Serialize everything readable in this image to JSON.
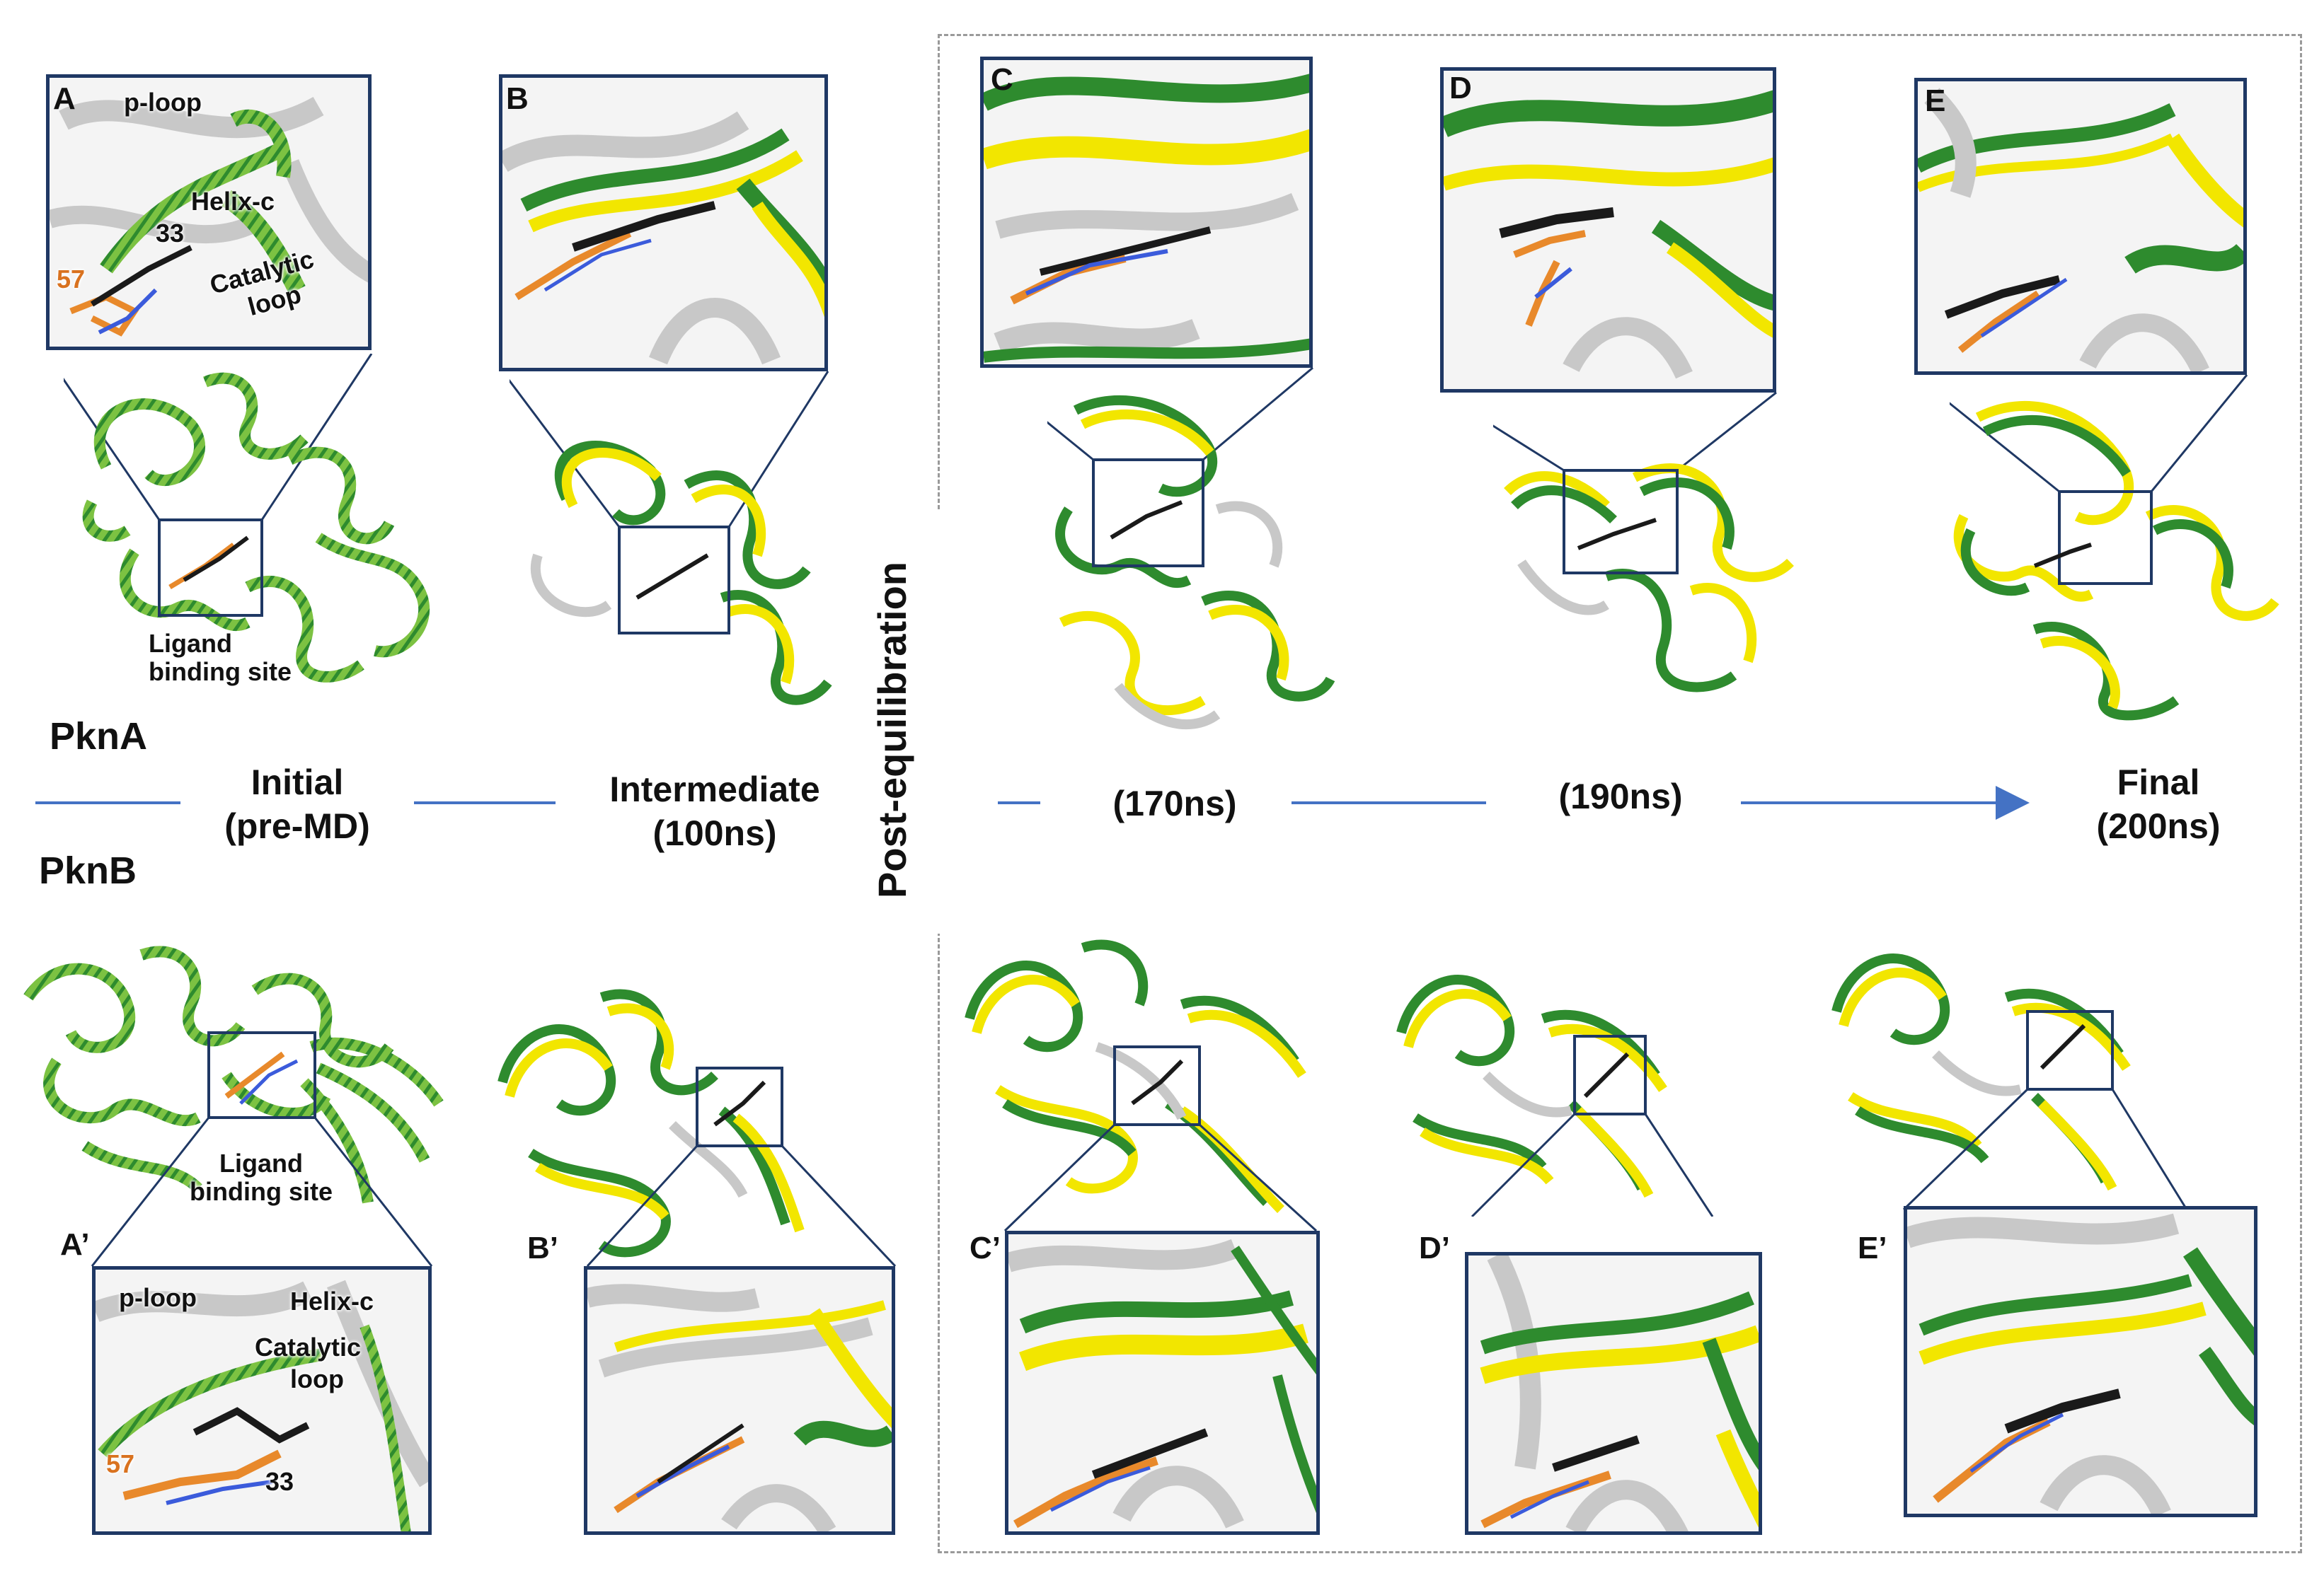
{
  "rows": {
    "top": "PknA",
    "bottom": "PknB"
  },
  "timeline": {
    "stage_initial": [
      "Initial",
      "(pre-MD)"
    ],
    "stage_intermediate": [
      "Intermediate",
      "(100ns)"
    ],
    "stage_170": "(170ns)",
    "stage_190": "(190ns)",
    "stage_final": [
      "Final",
      "(200ns)"
    ],
    "post_equilibration": "Post-equilibration",
    "arrow_color": "#4472c4"
  },
  "panels_top": [
    "A",
    "B",
    "C",
    "D",
    "E"
  ],
  "panels_bottom": [
    "A’",
    "B’",
    "C’",
    "D’",
    "E’"
  ],
  "annotations_A": {
    "p_loop": "p-loop",
    "helix_c": "Helix-c",
    "residue_33": "33",
    "residue_57": "57",
    "catalytic": "Catalytic",
    "loop": "loop",
    "ligand_site_1": "Ligand",
    "ligand_site_2": "binding site"
  },
  "annotations_A_prime": {
    "p_loop": "p-loop",
    "helix_c": "Helix-c",
    "catalytic": "Catalytic",
    "loop": "loop",
    "residue_57": "57",
    "residue_33": "33",
    "ligand_site_1": "Ligand",
    "ligand_site_2": "binding site"
  },
  "colors": {
    "box_border": "#1f3864",
    "ribbon_green": "#2e8b2e",
    "ribbon_lightgreen": "#7cc242",
    "ribbon_yellow": "#f2e600",
    "ribbon_gray": "#c8c8c8",
    "ligand_orange": "#e8892b",
    "ligand_black": "#1a1a1a",
    "ligand_blue": "#3b5bdb"
  }
}
